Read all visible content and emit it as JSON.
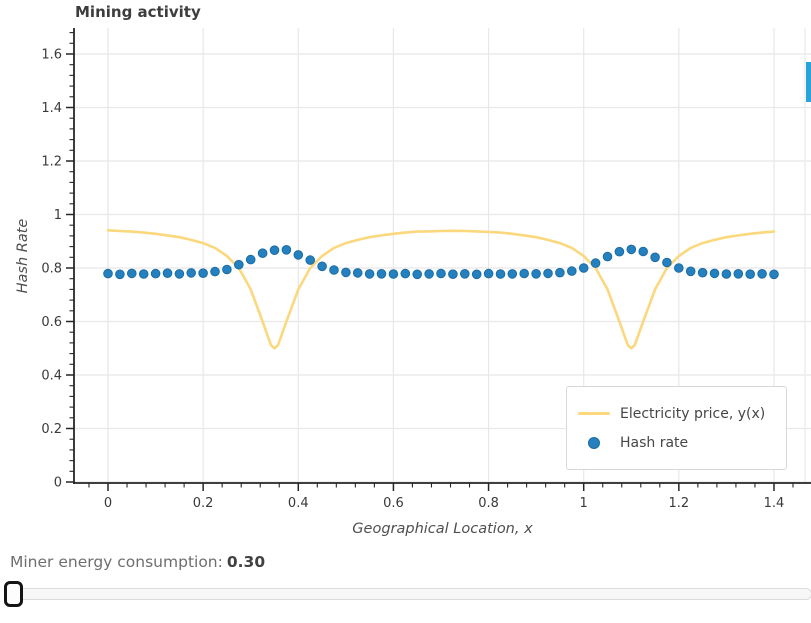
{
  "chart_data": {
    "type": "line+scatter",
    "title": "Mining activity",
    "xlabel": "Geographical Location, x",
    "ylabel": "Hash Rate",
    "xlim": [
      -0.071,
      1.477
    ],
    "ylim": [
      0,
      1.69
    ],
    "grid": true,
    "xticks": [
      0,
      0.2,
      0.4,
      0.6,
      0.8,
      1,
      1.2,
      1.4
    ],
    "xtick_labels": [
      "0",
      "0.2",
      "0.4",
      "0.6",
      "0.8",
      "1",
      "1.2",
      "1.4"
    ],
    "yticks": [
      0,
      0.2,
      0.4,
      0.6,
      0.8,
      1,
      1.2,
      1.4,
      1.6
    ],
    "ytick_labels": [
      "0",
      "0.2",
      "0.4",
      "0.6",
      "0.8",
      "1",
      "1.2",
      "1.4",
      "1.6"
    ],
    "legend_items": [
      {
        "label": "Electricity price, y(x)",
        "type": "line",
        "color": "#fbd87d"
      },
      {
        "label": "Hash rate",
        "type": "dot",
        "color": "#2580bf"
      }
    ],
    "series": [
      {
        "name": "Electricity price, y(x)",
        "type": "line",
        "color": "#fbd87d",
        "x": [
          0,
          0.025,
          0.05,
          0.075,
          0.1,
          0.125,
          0.15,
          0.175,
          0.2,
          0.225,
          0.25,
          0.275,
          0.3,
          0.325,
          0.3425,
          0.35,
          0.3575,
          0.375,
          0.4,
          0.425,
          0.45,
          0.475,
          0.5,
          0.525,
          0.55,
          0.575,
          0.6,
          0.625,
          0.65,
          0.675,
          0.7,
          0.725,
          0.75,
          0.775,
          0.8,
          0.825,
          0.85,
          0.875,
          0.9,
          0.925,
          0.95,
          0.975,
          1,
          1.025,
          1.05,
          1.075,
          1.0925,
          1.1,
          1.1075,
          1.125,
          1.15,
          1.175,
          1.2,
          1.225,
          1.25,
          1.275,
          1.3,
          1.325,
          1.35,
          1.375,
          1.4
        ],
        "y": [
          0.941,
          0.9385,
          0.936,
          0.9325,
          0.928,
          0.922,
          0.915,
          0.905,
          0.893,
          0.875,
          0.845,
          0.8,
          0.72,
          0.6,
          0.512,
          0.5,
          0.512,
          0.6,
          0.72,
          0.8,
          0.845,
          0.875,
          0.893,
          0.905,
          0.915,
          0.922,
          0.928,
          0.9325,
          0.936,
          0.937,
          0.9385,
          0.939,
          0.9385,
          0.937,
          0.935,
          0.9325,
          0.928,
          0.922,
          0.915,
          0.905,
          0.893,
          0.875,
          0.845,
          0.8,
          0.72,
          0.6,
          0.512,
          0.5,
          0.512,
          0.6,
          0.72,
          0.8,
          0.845,
          0.875,
          0.893,
          0.905,
          0.915,
          0.922,
          0.928,
          0.9325,
          0.936
        ]
      },
      {
        "name": "Hash rate",
        "type": "scatter",
        "color": "#2580bf",
        "x": [
          0,
          0.025,
          0.05,
          0.075,
          0.1,
          0.125,
          0.15,
          0.175,
          0.2,
          0.225,
          0.25,
          0.275,
          0.3,
          0.325,
          0.35,
          0.375,
          0.4,
          0.425,
          0.45,
          0.475,
          0.5,
          0.525,
          0.55,
          0.575,
          0.6,
          0.625,
          0.65,
          0.675,
          0.7,
          0.725,
          0.75,
          0.775,
          0.8,
          0.825,
          0.85,
          0.875,
          0.9,
          0.925,
          0.95,
          0.975,
          1,
          1.025,
          1.05,
          1.075,
          1.1,
          1.125,
          1.15,
          1.175,
          1.2,
          1.225,
          1.25,
          1.275,
          1.3,
          1.325,
          1.35,
          1.375,
          1.4
        ],
        "y": [
          0.779,
          0.7765,
          0.78,
          0.7775,
          0.779,
          0.7805,
          0.778,
          0.7815,
          0.7805,
          0.7865,
          0.7945,
          0.8125,
          0.8315,
          0.8555,
          0.8665,
          0.868,
          0.849,
          0.8295,
          0.8065,
          0.7925,
          0.7835,
          0.7815,
          0.778,
          0.7785,
          0.7775,
          0.779,
          0.7765,
          0.778,
          0.7795,
          0.777,
          0.7785,
          0.7765,
          0.779,
          0.7775,
          0.778,
          0.7795,
          0.7785,
          0.78,
          0.7825,
          0.7885,
          0.8,
          0.8185,
          0.8425,
          0.861,
          0.8695,
          0.8615,
          0.84,
          0.8205,
          0.8,
          0.7875,
          0.7825,
          0.78,
          0.7775,
          0.7785,
          0.777,
          0.7785,
          0.7765
        ]
      }
    ],
    "colors": {
      "grid": "#e8e8e8",
      "spine": "#262626",
      "tick_label": "#3a3a3a",
      "right_spine": "#ececec"
    }
  },
  "footer": {
    "label": "Miner energy consumption:",
    "value": "0.30"
  },
  "slider": {
    "thumb_position": 0
  },
  "misc": {
    "scroll_indicator_color": "#29a3dc"
  }
}
